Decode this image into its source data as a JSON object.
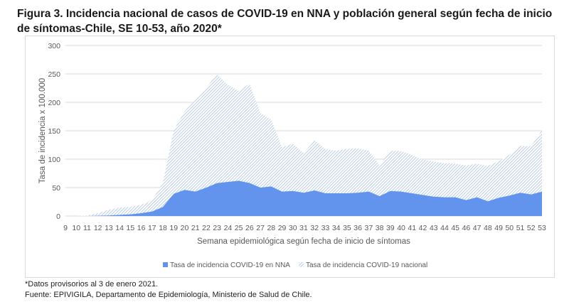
{
  "title": "Figura 3. Incidencia nacional de casos de COVID-19 en NNA y población general según fecha de inicio de síntomas-Chile, SE 10-53, año 2020*",
  "footnote": "*Datos provisorios al 3 de enero 2021.",
  "source": "Fuente: EPIVIGILA, Departamento de Epidemiología, Ministerio de Salud de Chile.",
  "colors": {
    "nna": "#6294ee",
    "nacional_hatch": "#a9c0de",
    "grid": "#d9d9d9",
    "tick_text": "#595959"
  },
  "chart_data": {
    "type": "area",
    "title": "",
    "xlabel": "Semana epidemiológica según fecha de inicio de síntomas",
    "ylabel": "Tasa de incidencia x 100.000",
    "ylim": [
      0,
      300
    ],
    "yticks": [
      0,
      50,
      100,
      150,
      200,
      250,
      300
    ],
    "grid": true,
    "legend_position": "bottom",
    "x": [
      9,
      10,
      11,
      12,
      13,
      14,
      15,
      16,
      17,
      18,
      19,
      20,
      21,
      22,
      23,
      24,
      25,
      26,
      27,
      28,
      29,
      30,
      31,
      32,
      33,
      34,
      35,
      36,
      37,
      38,
      39,
      40,
      41,
      42,
      43,
      44,
      45,
      46,
      47,
      48,
      49,
      50,
      51,
      52,
      53
    ],
    "series": [
      {
        "name": "Tasa de incidencia COVID-19 nacional",
        "style": "hatched",
        "values": [
          0,
          0,
          1,
          5,
          11,
          15,
          16,
          20,
          27,
          59,
          151,
          184,
          205,
          226,
          249,
          231,
          220,
          233,
          181,
          170,
          121,
          127,
          111,
          133,
          118,
          115,
          118,
          119,
          115,
          89,
          115,
          114,
          107,
          99,
          96,
          93,
          92,
          89,
          92,
          88,
          96,
          108,
          123,
          123,
          151
        ]
      },
      {
        "name": "Tasa de incidencia COVID-19 en NNA",
        "style": "solid",
        "values": [
          0,
          0,
          0,
          0.5,
          1,
          2,
          3,
          5,
          8,
          16,
          39,
          46,
          43,
          50,
          58,
          60,
          62,
          58,
          50,
          52,
          43,
          44,
          41,
          45,
          40,
          40,
          40,
          41,
          43,
          35,
          44,
          43,
          40,
          37,
          34,
          33,
          33,
          28,
          33,
          26,
          32,
          36,
          41,
          38,
          43
        ]
      }
    ]
  }
}
